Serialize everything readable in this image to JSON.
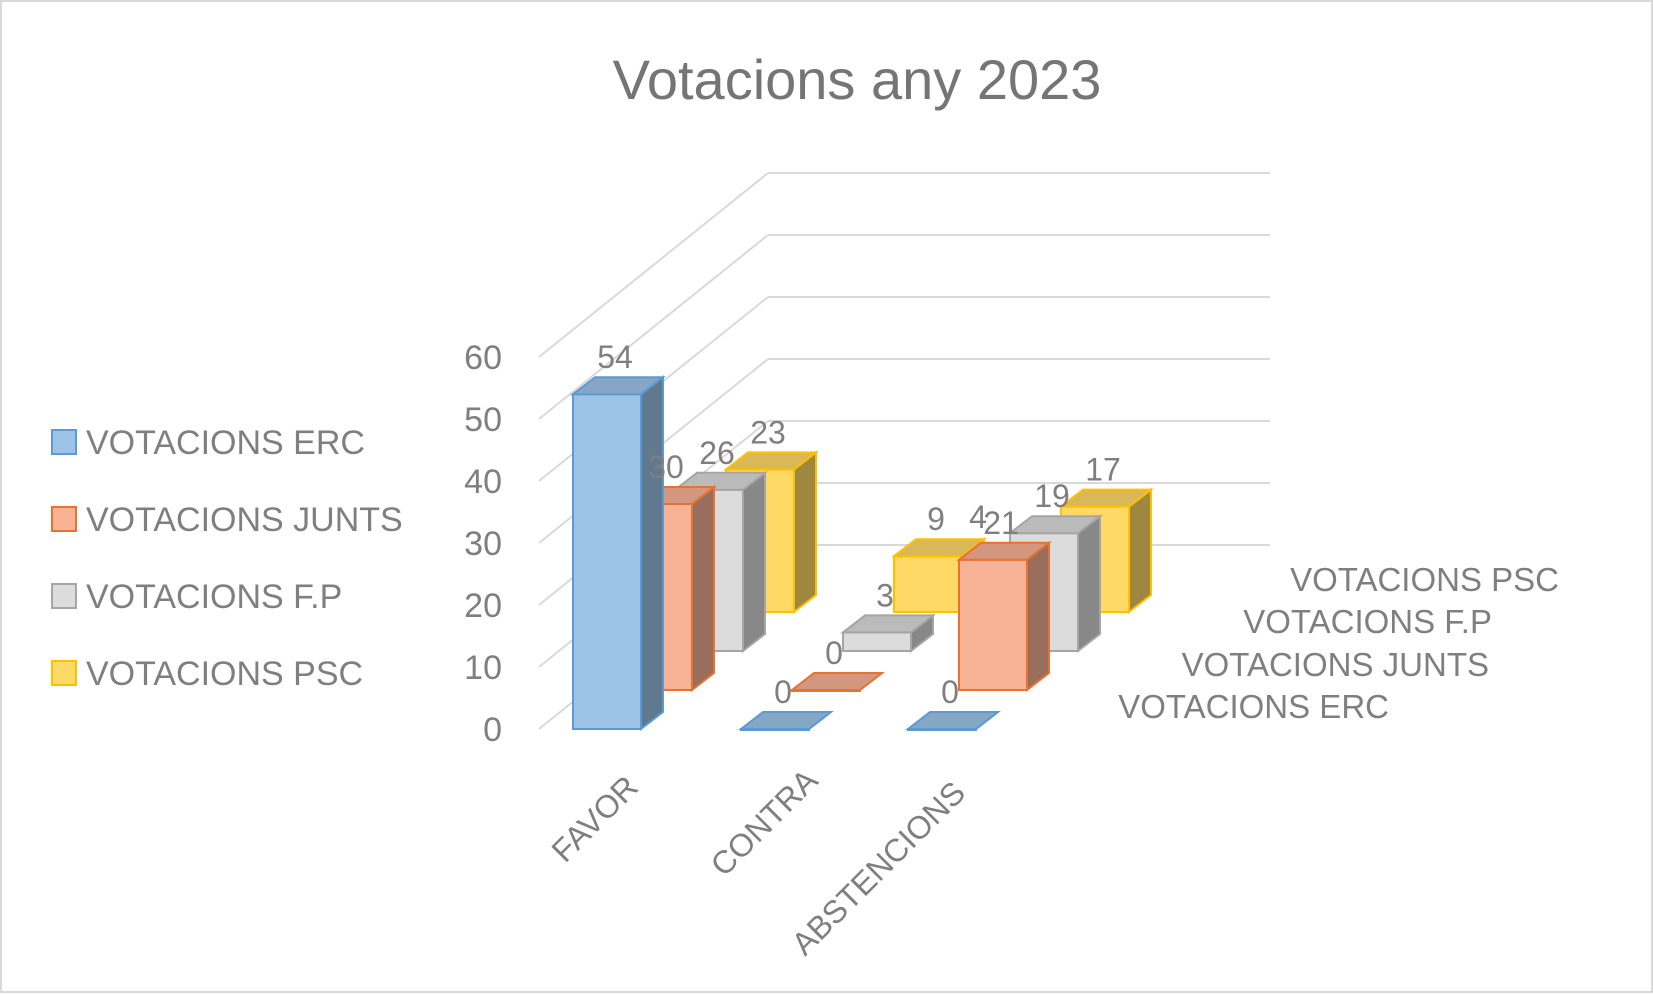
{
  "chart_data": {
    "type": "bar",
    "subtype": "3d-column",
    "title": "Votacions any 2023",
    "categories": [
      "FAVOR",
      "CONTRA",
      "ABSTENCIONS"
    ],
    "series": [
      {
        "name": "VOTACIONS ERC",
        "values": [
          54,
          0,
          0
        ],
        "color": "#9dc3e6",
        "edge": "#5b9bd5"
      },
      {
        "name": "VOTACIONS JUNTS",
        "values": [
          30,
          0,
          21
        ],
        "color": "#f8b295",
        "edge": "#e97132"
      },
      {
        "name": "VOTACIONS F.P",
        "values": [
          26,
          3,
          19
        ],
        "color": "#dcdcdc",
        "edge": "#a5a5a5"
      },
      {
        "name": "VOTACIONS PSC",
        "values": [
          23,
          9,
          17
        ],
        "color": "#ffd966",
        "edge": "#ffc000"
      }
    ],
    "extra_labels": [
      "4"
    ],
    "y_ticks": [
      "0",
      "10",
      "20",
      "30",
      "40",
      "50",
      "60"
    ],
    "ylim": [
      0,
      60
    ],
    "grid": true,
    "legend_position": "left"
  }
}
